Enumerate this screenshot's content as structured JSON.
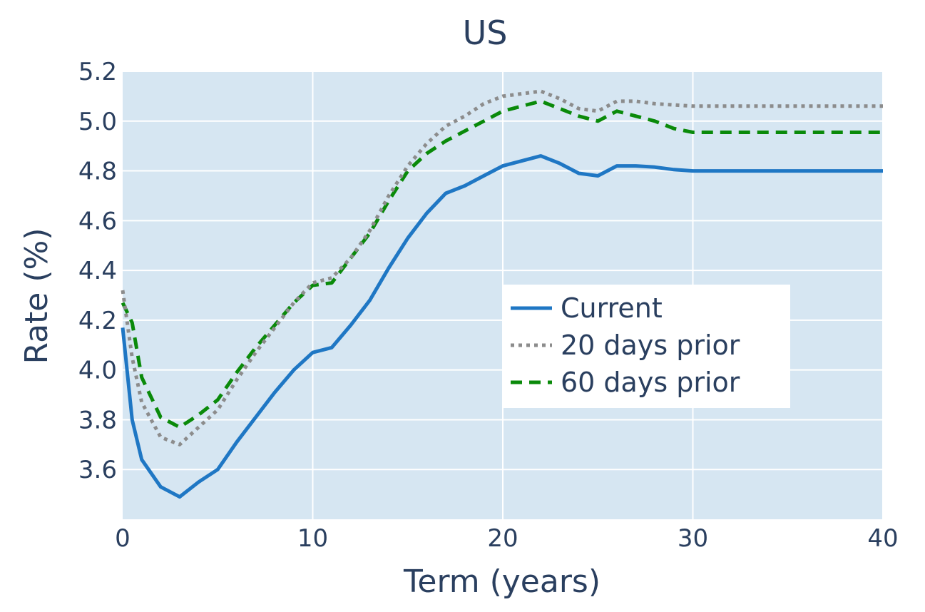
{
  "chart_data": {
    "type": "line",
    "title": "US",
    "xlabel": "Term (years)",
    "ylabel": "Rate (%)",
    "xlim": [
      0,
      40
    ],
    "ylim": [
      3.4,
      5.2
    ],
    "x_ticks": [
      0,
      10,
      20,
      30,
      40
    ],
    "y_ticks": [
      3.6,
      3.8,
      4.0,
      4.2,
      4.4,
      4.6,
      4.8,
      5.0,
      5.2
    ],
    "grid": true,
    "legend_position": "center-right",
    "plot_background": "#d6e6f2",
    "series": [
      {
        "name": "Current",
        "color": "#1f77c4",
        "dash": "solid",
        "x": [
          0,
          0.5,
          1,
          2,
          3,
          4,
          5,
          6,
          7,
          8,
          9,
          10,
          11,
          12,
          13,
          14,
          15,
          16,
          17,
          18,
          19,
          20,
          21,
          22,
          23,
          24,
          25,
          26,
          27,
          28,
          29,
          30,
          35,
          40
        ],
        "y": [
          4.17,
          3.8,
          3.64,
          3.53,
          3.49,
          3.55,
          3.6,
          3.71,
          3.81,
          3.91,
          4.0,
          4.07,
          4.09,
          4.18,
          4.28,
          4.41,
          4.53,
          4.63,
          4.71,
          4.74,
          4.78,
          4.82,
          4.84,
          4.86,
          4.83,
          4.79,
          4.78,
          4.82,
          4.82,
          4.815,
          4.805,
          4.8,
          4.8,
          4.8
        ]
      },
      {
        "name": "20 days prior",
        "color": "#8c8c8c",
        "dash": "dotted",
        "x": [
          0,
          0.5,
          1,
          2,
          3,
          4,
          5,
          6,
          7,
          8,
          9,
          10,
          11,
          12,
          13,
          14,
          15,
          16,
          17,
          18,
          19,
          20,
          21,
          22,
          23,
          24,
          25,
          26,
          27,
          28,
          29,
          30,
          35,
          40
        ],
        "y": [
          4.32,
          4.05,
          3.87,
          3.73,
          3.7,
          3.77,
          3.84,
          3.96,
          4.07,
          4.17,
          4.27,
          4.35,
          4.37,
          4.45,
          4.56,
          4.7,
          4.82,
          4.91,
          4.98,
          5.02,
          5.07,
          5.1,
          5.11,
          5.12,
          5.09,
          5.05,
          5.04,
          5.08,
          5.08,
          5.07,
          5.065,
          5.06,
          5.06,
          5.06
        ]
      },
      {
        "name": "60 days prior",
        "color": "#0a8a0a",
        "dash": "dashed",
        "x": [
          0,
          0.5,
          1,
          2,
          3,
          4,
          5,
          6,
          7,
          8,
          9,
          10,
          11,
          12,
          13,
          14,
          15,
          16,
          17,
          18,
          19,
          20,
          21,
          22,
          23,
          24,
          25,
          26,
          27,
          28,
          29,
          30,
          35,
          40
        ],
        "y": [
          4.27,
          4.19,
          3.97,
          3.81,
          3.77,
          3.82,
          3.88,
          3.99,
          4.09,
          4.18,
          4.27,
          4.34,
          4.35,
          4.45,
          4.55,
          4.68,
          4.8,
          4.87,
          4.92,
          4.96,
          5.0,
          5.04,
          5.06,
          5.08,
          5.05,
          5.02,
          5.0,
          5.04,
          5.02,
          5.0,
          4.97,
          4.955,
          4.955,
          4.955
        ]
      }
    ]
  }
}
